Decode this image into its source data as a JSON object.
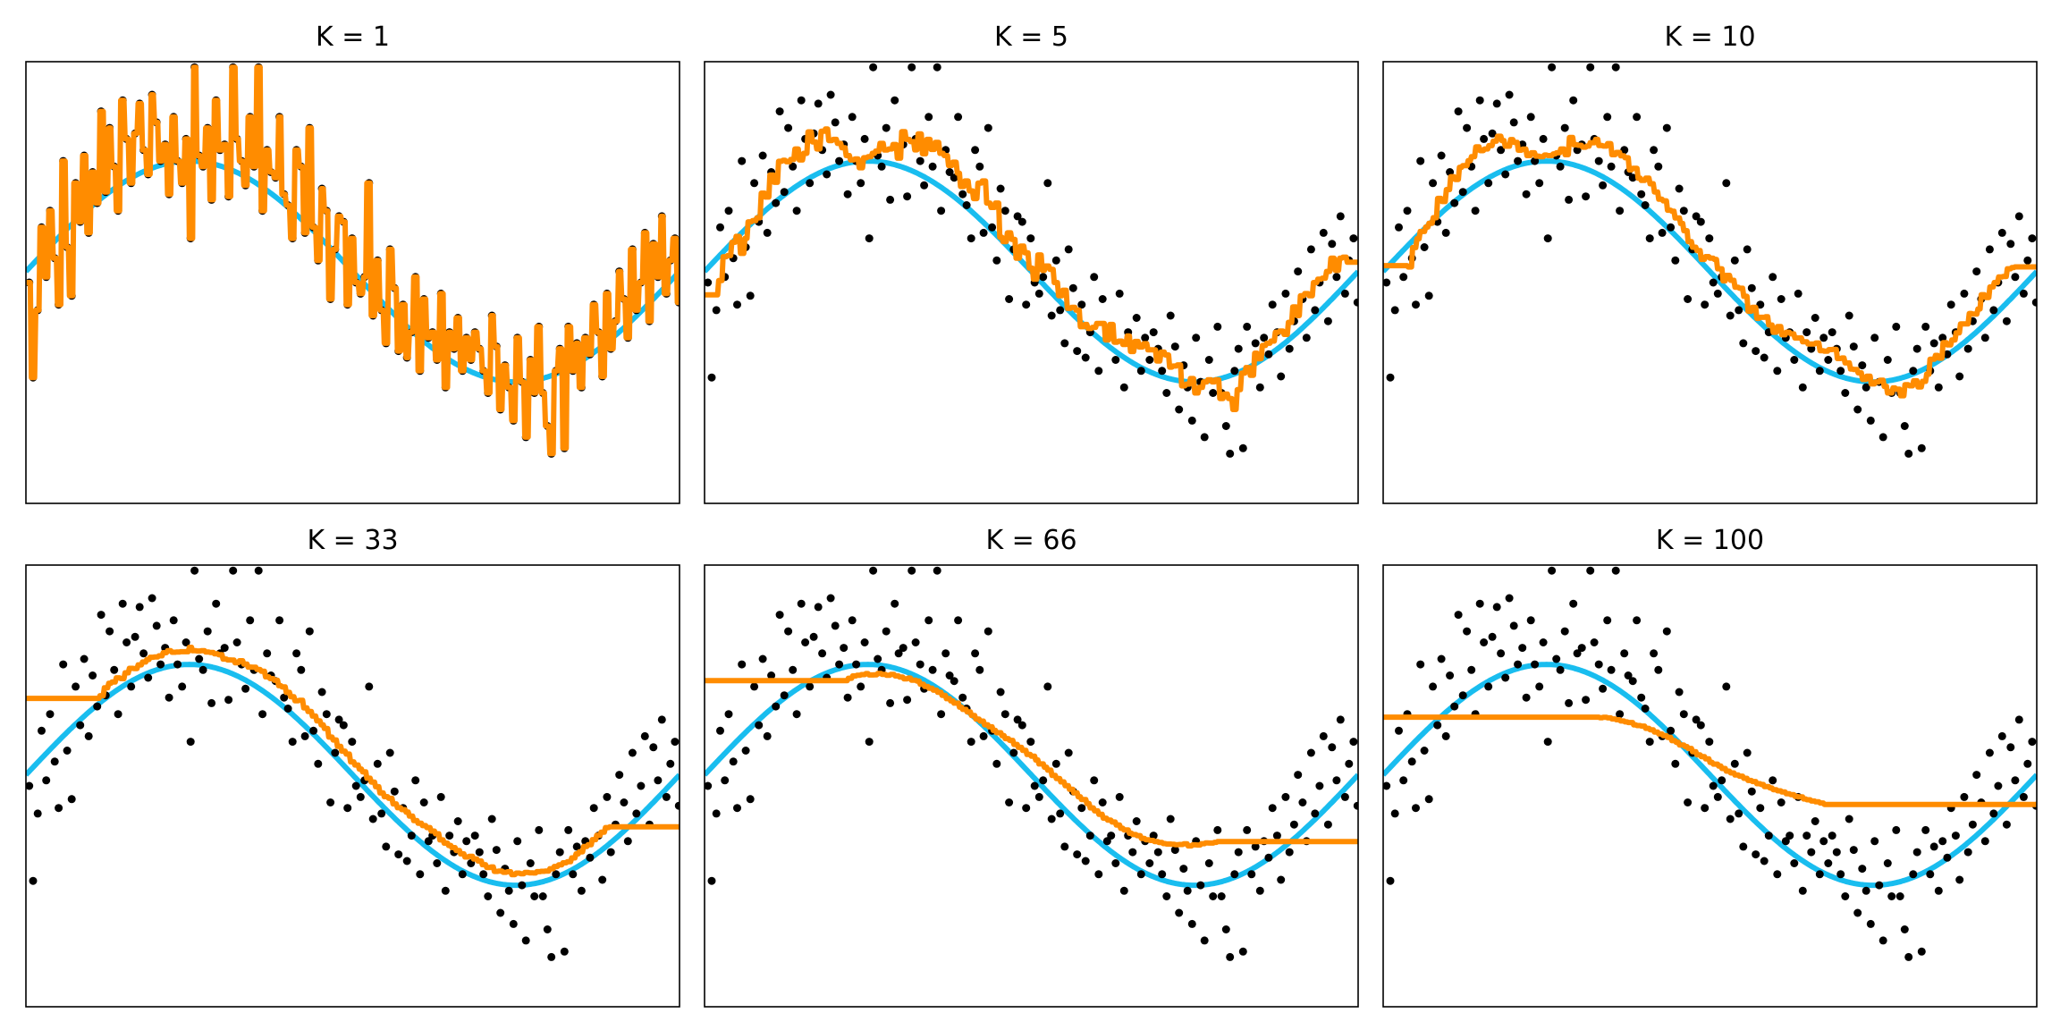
{
  "colors": {
    "true_curve": "#19bdef",
    "knn_fit": "#ff8c00",
    "points": "#000000",
    "frame": "#000000",
    "background": "#ffffff"
  },
  "chart_data": [
    {
      "type": "line",
      "title": "K = 1",
      "k": 1,
      "layout_position": "row 1, column 1"
    },
    {
      "type": "line",
      "title": "K = 5",
      "k": 5,
      "layout_position": "row 1, column 2"
    },
    {
      "type": "line",
      "title": "K = 10",
      "k": 10,
      "layout_position": "row 1, column 3"
    },
    {
      "type": "line",
      "title": "K = 33",
      "k": 33,
      "layout_position": "row 2, column 1"
    },
    {
      "type": "line",
      "title": "K = 66",
      "k": 66,
      "layout_position": "row 2, column 2"
    },
    {
      "type": "line",
      "title": "K = 100",
      "k": 100,
      "layout_position": "row 2, column 3"
    }
  ],
  "shared_axes": {
    "xlim": [
      0,
      1
    ],
    "ylim": [
      -2.1,
      1.9
    ],
    "ticks_shown": false,
    "grid": false,
    "legend": "none"
  },
  "series_common": {
    "true_function": "y = sin(2*pi*x)",
    "sample_points": [
      [
        0.005,
        -0.1
      ],
      [
        0.011,
        -0.96
      ],
      [
        0.018,
        -0.35
      ],
      [
        0.024,
        0.4
      ],
      [
        0.031,
        -0.05
      ],
      [
        0.037,
        0.55
      ],
      [
        0.044,
        0.12
      ],
      [
        0.05,
        -0.3
      ],
      [
        0.057,
        1.0
      ],
      [
        0.063,
        0.22
      ],
      [
        0.07,
        -0.22
      ],
      [
        0.076,
        0.8
      ],
      [
        0.083,
        0.45
      ],
      [
        0.089,
        1.05
      ],
      [
        0.096,
        0.35
      ],
      [
        0.102,
        0.9
      ],
      [
        0.109,
        0.62
      ],
      [
        0.115,
        1.45
      ],
      [
        0.122,
        0.72
      ],
      [
        0.128,
        1.3
      ],
      [
        0.135,
        0.95
      ],
      [
        0.141,
        0.55
      ],
      [
        0.148,
        1.55
      ],
      [
        0.154,
        1.2
      ],
      [
        0.161,
        0.8
      ],
      [
        0.167,
        1.25
      ],
      [
        0.174,
        1.52
      ],
      [
        0.18,
        1.1
      ],
      [
        0.187,
        0.88
      ],
      [
        0.193,
        1.6
      ],
      [
        0.2,
        1.35
      ],
      [
        0.206,
        1.0
      ],
      [
        0.213,
        1.15
      ],
      [
        0.219,
        0.7
      ],
      [
        0.226,
        1.4
      ],
      [
        0.232,
        1.0
      ],
      [
        0.239,
        0.8
      ],
      [
        0.245,
        1.2
      ],
      [
        0.252,
        0.3
      ],
      [
        0.258,
        1.85
      ],
      [
        0.265,
        1.05
      ],
      [
        0.271,
        0.95
      ],
      [
        0.278,
        1.3
      ],
      [
        0.284,
        0.65
      ],
      [
        0.291,
        1.55
      ],
      [
        0.297,
        1.1
      ],
      [
        0.304,
        1.15
      ],
      [
        0.31,
        0.68
      ],
      [
        0.317,
        1.85
      ],
      [
        0.323,
        1.2
      ],
      [
        0.33,
        1.0
      ],
      [
        0.336,
        0.78
      ],
      [
        0.343,
        1.4
      ],
      [
        0.349,
        0.95
      ],
      [
        0.356,
        1.85
      ],
      [
        0.362,
        0.55
      ],
      [
        0.369,
        1.1
      ],
      [
        0.375,
        0.9
      ],
      [
        0.382,
        0.85
      ],
      [
        0.388,
        1.4
      ],
      [
        0.395,
        0.7
      ],
      [
        0.401,
        0.6
      ],
      [
        0.408,
        0.3
      ],
      [
        0.414,
        1.1
      ],
      [
        0.421,
        0.95
      ],
      [
        0.427,
        0.35
      ],
      [
        0.434,
        1.3
      ],
      [
        0.44,
        0.4
      ],
      [
        0.447,
        0.1
      ],
      [
        0.453,
        0.75
      ],
      [
        0.46,
        0.55
      ],
      [
        0.466,
        -0.25
      ],
      [
        0.473,
        0.2
      ],
      [
        0.479,
        0.5
      ],
      [
        0.486,
        0.45
      ],
      [
        0.492,
        -0.3
      ],
      [
        0.499,
        0.3
      ],
      [
        0.505,
        -0.1
      ],
      [
        0.512,
        -0.2
      ],
      [
        0.518,
        -0.05
      ],
      [
        0.525,
        0.8
      ],
      [
        0.531,
        -0.4
      ],
      [
        0.538,
        0.1
      ],
      [
        0.544,
        -0.35
      ],
      [
        0.551,
        -0.65
      ],
      [
        0.557,
        0.2
      ],
      [
        0.564,
        -0.15
      ],
      [
        0.57,
        -0.72
      ],
      [
        0.577,
        -0.3
      ],
      [
        0.583,
        -0.78
      ],
      [
        0.59,
        -0.55
      ],
      [
        0.596,
        -0.05
      ],
      [
        0.603,
        -0.9
      ],
      [
        0.609,
        -0.25
      ],
      [
        0.616,
        -0.6
      ],
      [
        0.622,
        -0.55
      ],
      [
        0.629,
        -0.8
      ],
      [
        0.635,
        -0.2
      ],
      [
        0.642,
        -1.05
      ],
      [
        0.648,
        -0.55
      ],
      [
        0.655,
        -0.7
      ],
      [
        0.661,
        -0.42
      ],
      [
        0.668,
        -0.9
      ],
      [
        0.674,
        -0.6
      ],
      [
        0.681,
        -0.8
      ],
      [
        0.687,
        -0.55
      ],
      [
        0.694,
        -0.7
      ],
      [
        0.7,
        -0.9
      ],
      [
        0.707,
        -1.1
      ],
      [
        0.713,
        -0.4
      ],
      [
        0.72,
        -0.68
      ],
      [
        0.726,
        -1.25
      ],
      [
        0.733,
        -0.85
      ],
      [
        0.739,
        -1.05
      ],
      [
        0.746,
        -1.35
      ],
      [
        0.752,
        -0.6
      ],
      [
        0.759,
        -1.0
      ],
      [
        0.765,
        -1.5
      ],
      [
        0.772,
        -0.8
      ],
      [
        0.778,
        -1.1
      ],
      [
        0.785,
        -0.5
      ],
      [
        0.791,
        -1.1
      ],
      [
        0.798,
        -1.4
      ],
      [
        0.804,
        -1.65
      ],
      [
        0.811,
        -0.9
      ],
      [
        0.817,
        -0.7
      ],
      [
        0.824,
        -1.6
      ],
      [
        0.83,
        -0.5
      ],
      [
        0.837,
        -0.9
      ],
      [
        0.843,
        -0.65
      ],
      [
        0.85,
        -1.05
      ],
      [
        0.856,
        -0.6
      ],
      [
        0.863,
        -0.75
      ],
      [
        0.869,
        -0.3
      ],
      [
        0.876,
        -0.55
      ],
      [
        0.882,
        -0.95
      ],
      [
        0.889,
        -0.2
      ],
      [
        0.895,
        -0.7
      ],
      [
        0.902,
        -0.45
      ],
      [
        0.908,
        0.0
      ],
      [
        0.915,
        -0.25
      ],
      [
        0.921,
        -0.6
      ],
      [
        0.928,
        0.2
      ],
      [
        0.934,
        -0.35
      ],
      [
        0.941,
        -0.1
      ],
      [
        0.947,
        0.35
      ],
      [
        0.954,
        -0.45
      ],
      [
        0.96,
        0.25
      ],
      [
        0.967,
        -0.05
      ],
      [
        0.973,
        0.5
      ],
      [
        0.98,
        -0.2
      ],
      [
        0.986,
        0.1
      ],
      [
        0.993,
        0.3
      ],
      [
        0.999,
        -0.28
      ]
    ]
  }
}
